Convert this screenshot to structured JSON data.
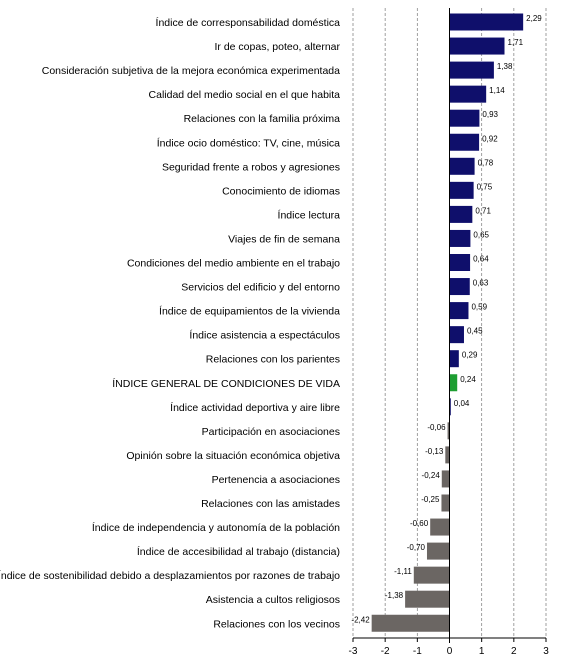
{
  "chart_data": {
    "type": "bar",
    "orientation": "horizontal",
    "categories": [
      "Índice de corresponsabilidad doméstica",
      "Ir de copas, poteo, alternar",
      "Consideración subjetiva de la mejora económica experimentada",
      "Calidad del medio social en el que habita",
      "Relaciones con la familia próxima",
      "Índice ocio doméstico: TV, cine, música",
      "Seguridad frente a robos y agresiones",
      "Conocimiento de idiomas",
      "Índice lectura",
      "Viajes de fin de semana",
      "Condiciones del medio ambiente en el trabajo",
      "Servicios del edificio y del entorno",
      "Índice de equipamientos de la vivienda",
      "Índice asistencia a espectáculos",
      "Relaciones con los parientes",
      "ÍNDICE GENERAL DE CONDICIONES DE VIDA",
      "Índice actividad deportiva y aire libre",
      "Participación en asociaciones",
      "Opinión sobre la situación económica objetiva",
      "Pertenencia a asociaciones",
      "Relaciones con las amistades",
      "Índice de independencia y autonomía de la población",
      "Índice de accesibilidad al trabajo (distancia)",
      "Índice de sostenibilidad debido a desplazamientos por razones de trabajo",
      "Asistencia a cultos religiosos",
      "Relaciones con los vecinos"
    ],
    "values": [
      2.29,
      1.71,
      1.38,
      1.14,
      0.93,
      0.92,
      0.78,
      0.75,
      0.71,
      0.65,
      0.64,
      0.63,
      0.59,
      0.45,
      0.29,
      0.24,
      0.04,
      -0.06,
      -0.13,
      -0.24,
      -0.25,
      -0.6,
      -0.7,
      -1.11,
      -1.38,
      -2.42
    ],
    "value_labels": [
      "2,29",
      "1,71",
      "1,38",
      "1,14",
      "0,93",
      "0,92",
      "0,78",
      "0,75",
      "0,71",
      "0,65",
      "0,64",
      "0,63",
      "0,59",
      "0,45",
      "0,29",
      "0,24",
      "0,04",
      "-0,06",
      "-0,13",
      "-0,24",
      "-0,25",
      "-0,60",
      "-0,70",
      "-1,11",
      "-1,38",
      "-2,42"
    ],
    "xlim": [
      -3,
      3
    ],
    "xticks": [
      -3,
      -2,
      -1,
      0,
      1,
      2,
      3
    ],
    "xtick_labels": [
      "-3",
      "-2",
      "-1",
      "0",
      "1",
      "2",
      "3"
    ],
    "grid": "vertical dashed",
    "highlight_category": "ÍNDICE GENERAL DE CONDICIONES DE VIDA",
    "colors": {
      "positive": "#0f0f6b",
      "negative": "#6b6663",
      "highlight": "#1e9e32",
      "grid": "#888888",
      "axis": "#000000"
    }
  }
}
